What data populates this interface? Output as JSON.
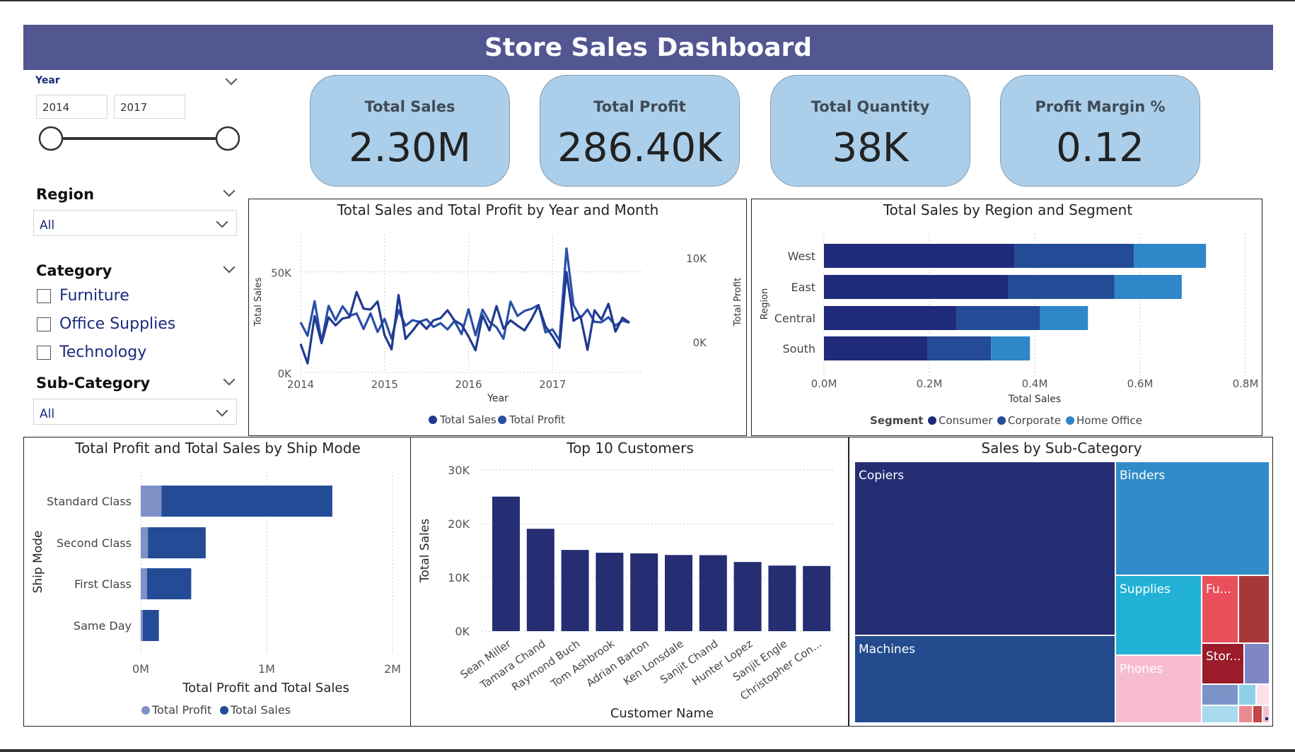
{
  "header": {
    "title": "Store Sales Dashboard"
  },
  "filters": {
    "year": {
      "label": "Year",
      "from": "2014",
      "to": "2017",
      "range": [
        2014,
        2017
      ],
      "selected": [
        2014,
        2017
      ]
    },
    "region": {
      "label": "Region",
      "value": "All"
    },
    "category": {
      "label": "Category",
      "options": [
        "Furniture",
        "Office Supplies",
        "Technology"
      ]
    },
    "subcategory": {
      "label": "Sub-Category",
      "value": "All"
    }
  },
  "kpis": [
    {
      "label": "Total Sales",
      "value": "2.30M"
    },
    {
      "label": "Total Profit",
      "value": "286.40K"
    },
    {
      "label": "Total Quantity",
      "value": "38K"
    },
    {
      "label": "Profit Margin %",
      "value": "0.12"
    }
  ],
  "chart_data": [
    {
      "type": "line",
      "title": "Total Sales and Total Profit by Year and Month",
      "xlabel": "Year",
      "ylabel": "Total Sales",
      "y2label": "Total Profit",
      "xticks": [
        "2014",
        "2015",
        "2016",
        "2017"
      ],
      "yticks": [
        "0K",
        "50K"
      ],
      "y2ticks": [
        "0K",
        "10K"
      ],
      "ylim": [
        0,
        65000
      ],
      "y2lim": [
        -3500,
        12000
      ],
      "legend": [
        "Total Sales",
        "Total Profit"
      ],
      "colors": {
        "Total Sales": "#1f3a8f",
        "Total Profit": "#2a4fa8"
      },
      "series": [
        {
          "name": "Total Sales",
          "values": [
            14200,
            4500,
            28000,
            14600,
            27400,
            23400,
            26800,
            27500,
            40000,
            31700,
            31300,
            35300,
            18500,
            11500,
            38500,
            16700,
            20700,
            25300,
            21700,
            25900,
            27000,
            30900,
            25800,
            23800,
            17900,
            11000,
            28400,
            20900,
            33000,
            21800,
            25900,
            23300,
            20900,
            26500,
            33300,
            22900,
            18000,
            12300,
            49900,
            25700,
            28000,
            11200,
            30900,
            26300,
            34100,
            20300,
            27200,
            24800
          ]
        },
        {
          "name": "Total Profit",
          "values": [
            2450,
            850,
            4950,
            120,
            4400,
            2700,
            4350,
            3200,
            3500,
            1650,
            3500,
            1300,
            2850,
            500,
            3900,
            2050,
            2700,
            2500,
            2800,
            1900,
            2350,
            1600,
            2600,
            1050,
            4000,
            900,
            3950,
            2500,
            1850,
            500,
            4900,
            3200,
            3800,
            4050,
            4500,
            1250,
            1600,
            300,
            11200,
            4500,
            2950,
            3950,
            2500,
            2450,
            3050,
            2050,
            2650,
            2400
          ]
        }
      ]
    },
    {
      "type": "bar",
      "orientation": "horizontal",
      "stacked": true,
      "title": "Total Sales by Region and Segment",
      "xlabel": "Total Sales",
      "ylabel": "Region",
      "categories": [
        "West",
        "East",
        "Central",
        "South"
      ],
      "xticks": [
        "0.0M",
        "0.2M",
        "0.4M",
        "0.6M",
        "0.8M"
      ],
      "xlim": [
        0,
        0.8
      ],
      "legend_title": "Segment",
      "legend": [
        "Consumer",
        "Corporate",
        "Home Office"
      ],
      "colors": {
        "Consumer": "#1f2a7a",
        "Corporate": "#244b96",
        "Home Office": "#2f86c8"
      },
      "series": [
        {
          "name": "Consumer",
          "values": [
            0.362,
            0.35,
            0.252,
            0.196
          ]
        },
        {
          "name": "Corporate",
          "values": [
            0.226,
            0.201,
            0.158,
            0.121
          ]
        },
        {
          "name": "Home Office",
          "values": [
            0.137,
            0.128,
            0.091,
            0.074
          ]
        }
      ]
    },
    {
      "type": "bar",
      "orientation": "horizontal",
      "stacked": true,
      "title": "Total Profit and Total Sales by Ship Mode",
      "xlabel": "Total Profit and Total Sales",
      "ylabel": "Ship Mode",
      "categories": [
        "Standard Class",
        "Second Class",
        "First Class",
        "Same Day"
      ],
      "xticks": [
        "0M",
        "1M",
        "2M"
      ],
      "xlim": [
        0,
        2
      ],
      "legend": [
        "Total Profit",
        "Total Sales"
      ],
      "colors": {
        "Total Profit": "#7f92c8",
        "Total Sales": "#244b96"
      },
      "series": [
        {
          "name": "Total Profit",
          "values": [
            0.164,
            0.057,
            0.049,
            0.016
          ]
        },
        {
          "name": "Total Sales",
          "values": [
            1.358,
            0.459,
            0.352,
            0.128
          ]
        }
      ]
    },
    {
      "type": "bar",
      "title": "Top 10 Customers",
      "xlabel": "Customer Name",
      "ylabel": "Total Sales",
      "categories": [
        "Sean Miller",
        "Tamara Chand",
        "Raymond Buch",
        "Tom Ashbrook",
        "Adrian Barton",
        "Ken Lonsdale",
        "Sanjit Chand",
        "Hunter Lopez",
        "Sanjit Engle",
        "Christopher Con..."
      ],
      "values": [
        25043,
        19052,
        15117,
        14596,
        14474,
        14175,
        14142,
        12873,
        12209,
        12129
      ],
      "yticks": [
        "0K",
        "10K",
        "20K",
        "30K"
      ],
      "ylim": [
        0,
        30000
      ],
      "colors": {
        "bar": "#252d73"
      }
    },
    {
      "type": "treemap",
      "title": "Sales by Sub-Category",
      "categories": [
        "Copiers",
        "Machines",
        "Binders",
        "Supplies",
        "Phones",
        "Fu...",
        "Stor..."
      ],
      "colors": {
        "Copiers": "#252d73",
        "Machines": "#234b8e",
        "Binders": "#2f8cc9",
        "Supplies": "#22b1d6",
        "Phones": "#f7bcd2",
        "Furnishings": "#e94f5a",
        "Storage": "#9b1b2a",
        "Tables": "#a83838",
        "Other": "#7f86c4"
      }
    }
  ]
}
